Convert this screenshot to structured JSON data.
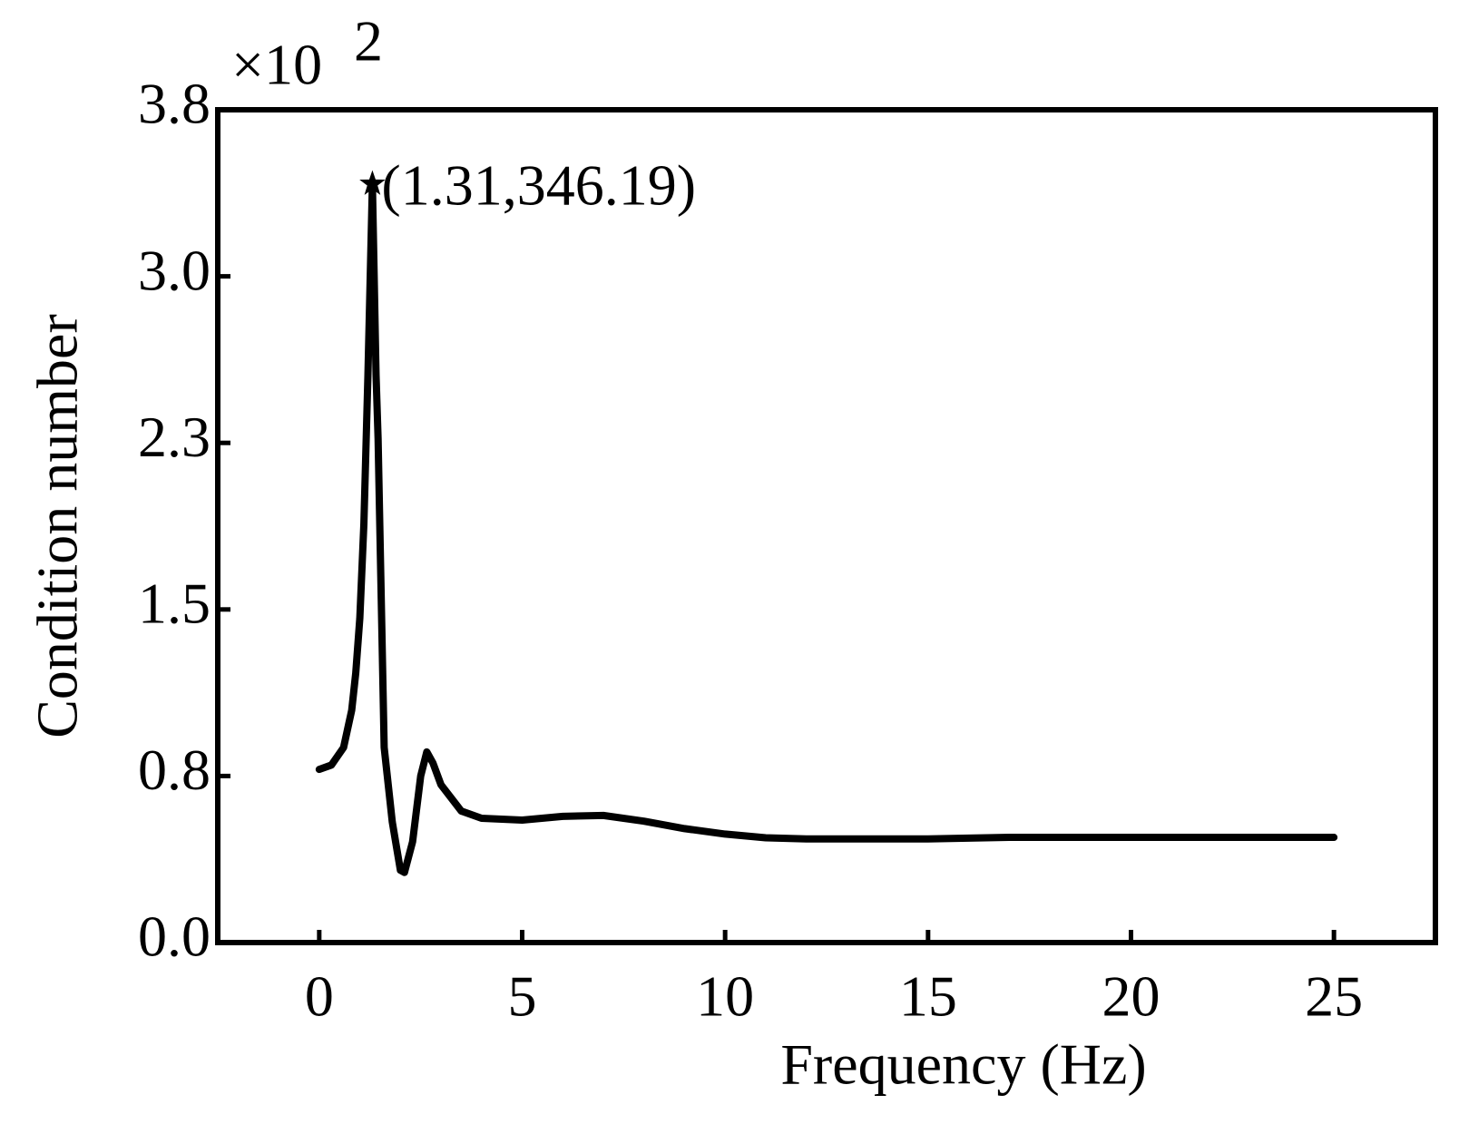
{
  "chart_data": {
    "type": "line",
    "x_label": "Frequency (Hz)",
    "y_label": "Condition number",
    "y_multiplier": {
      "base": "×10",
      "exponent": "2"
    },
    "x": [
      0,
      0.3,
      0.6,
      0.8,
      0.9,
      1.0,
      1.1,
      1.2,
      1.31,
      1.4,
      1.45,
      1.6,
      1.8,
      2.0,
      2.1,
      2.3,
      2.5,
      2.65,
      2.8,
      3.0,
      3.5,
      4,
      5,
      6,
      7,
      8,
      9,
      10,
      11,
      12,
      15,
      17,
      20,
      25
    ],
    "series": [
      {
        "name": "Condition number",
        "color": "#000000",
        "values": [
          0.79,
          0.81,
          0.89,
          1.06,
          1.23,
          1.48,
          1.91,
          2.59,
          3.4619,
          2.59,
          2.3,
          0.89,
          0.55,
          0.33,
          0.32,
          0.46,
          0.76,
          0.87,
          0.82,
          0.72,
          0.6,
          0.567,
          0.559,
          0.576,
          0.58,
          0.554,
          0.52,
          0.495,
          0.478,
          0.473,
          0.473,
          0.48,
          0.48,
          0.48
        ]
      }
    ],
    "annotation": {
      "text": "(1.31,346.19)",
      "x": 1.31,
      "y": 3.4619
    },
    "xlim": [
      -2.5,
      27.5
    ],
    "ylim": [
      0,
      3.8
    ],
    "xticks": [
      0,
      5,
      10,
      15,
      20,
      25
    ],
    "yticks": [
      {
        "value": 0,
        "label": "0.0"
      },
      {
        "value": 0.76,
        "label": "0.8"
      },
      {
        "value": 1.52,
        "label": "1.5"
      },
      {
        "value": 2.28,
        "label": "2.3"
      },
      {
        "value": 3.04,
        "label": "3.0"
      },
      3.8
    ],
    "grid": false
  }
}
